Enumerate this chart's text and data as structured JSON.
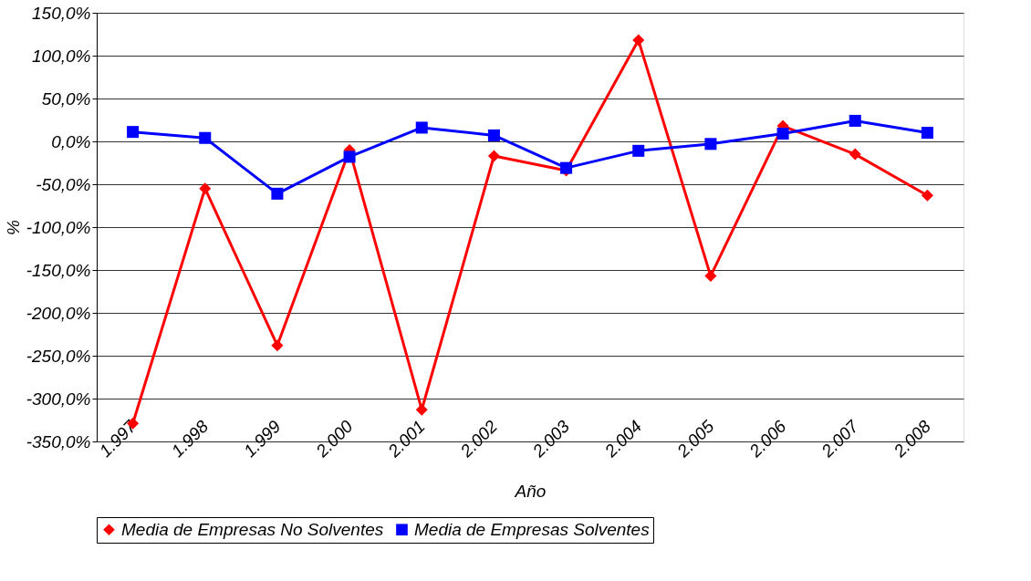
{
  "chart_data": {
    "type": "line",
    "xlabel": "Año",
    "ylabel": "%",
    "categories": [
      "1.997",
      "1.998",
      "1.999",
      "2.000",
      "2.001",
      "2.002",
      "2.003",
      "2.004",
      "2.005",
      "2.006",
      "2.007",
      "2.008"
    ],
    "series": [
      {
        "name": "Media de Empresas No Solventes",
        "color": "#ff0000",
        "marker": "diamond",
        "values": [
          -329,
          -55,
          -238,
          -10,
          -313,
          -17,
          -34,
          118,
          -157,
          18,
          -15,
          -63
        ]
      },
      {
        "name": "Media de Empresas Solventes",
        "color": "#0000ff",
        "marker": "square",
        "values": [
          11,
          4,
          -61,
          -18,
          16,
          7,
          -31,
          -11,
          -3,
          9,
          24,
          10
        ]
      }
    ],
    "ylim": [
      -350,
      150
    ],
    "yticks": [
      {
        "value": 150,
        "label": "150,0%"
      },
      {
        "value": 100,
        "label": "100,0%"
      },
      {
        "value": 50,
        "label": "50,0%"
      },
      {
        "value": 0,
        "label": "0,0%"
      },
      {
        "value": -50,
        "label": "-50,0%"
      },
      {
        "value": -100,
        "label": "-100,0%"
      },
      {
        "value": -150,
        "label": "-150,0%"
      },
      {
        "value": -200,
        "label": "-200,0%"
      },
      {
        "value": -250,
        "label": "-250,0%"
      },
      {
        "value": -300,
        "label": "-300,0%"
      },
      {
        "value": -350,
        "label": "-350,0%"
      }
    ],
    "grid": "y",
    "legend": "bottom",
    "line_style": "solid"
  }
}
